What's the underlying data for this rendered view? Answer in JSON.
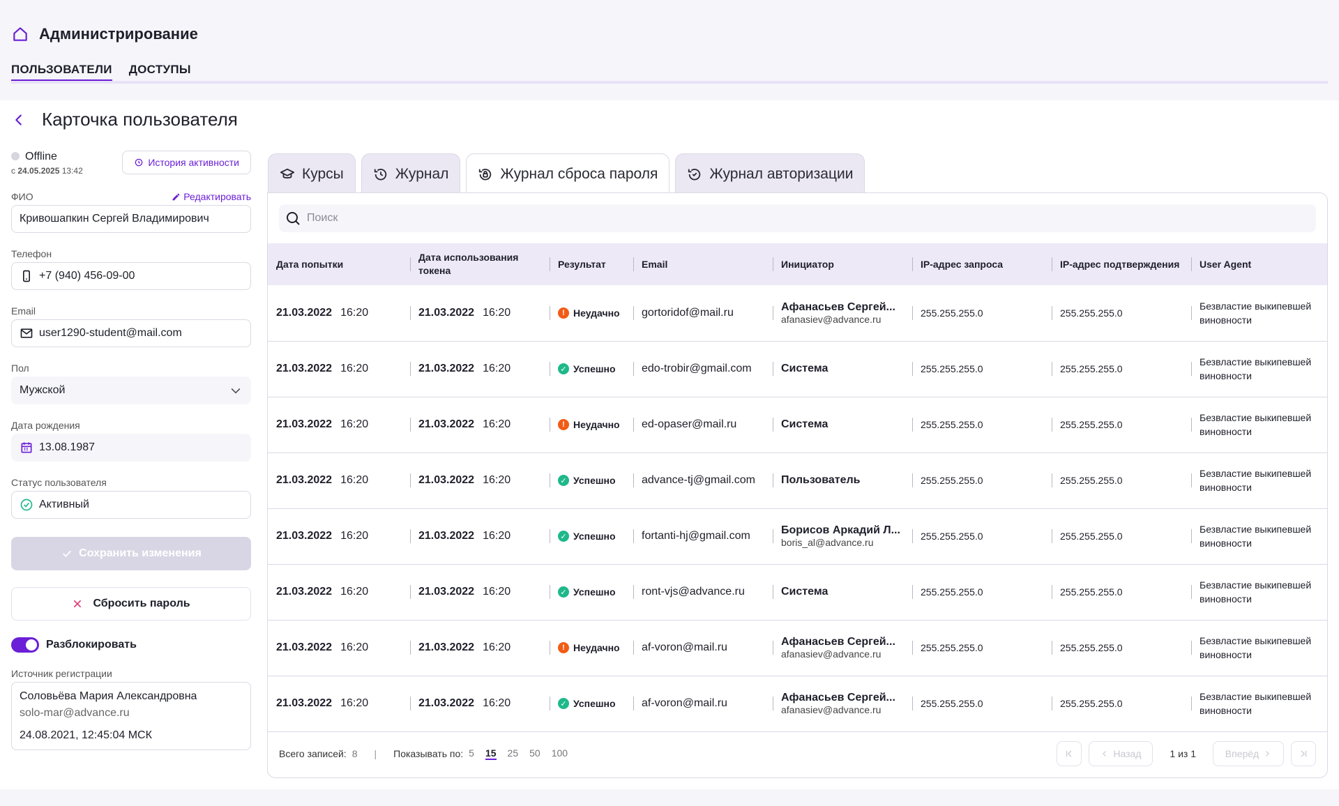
{
  "app": {
    "title": "Администрирование"
  },
  "top_tabs": [
    {
      "label": "ПОЛЬЗОВАТЕЛИ"
    },
    {
      "label": "ДОСТУПЫ"
    }
  ],
  "page": {
    "title": "Карточка пользователя"
  },
  "user": {
    "status": "Offline",
    "since_prefix": "с",
    "since_date": "24.05.2025",
    "since_time": "13:42",
    "history_label": "История активности",
    "edit_label": "Редактировать",
    "fields": {
      "fio_label": "ФИО",
      "fio": "Кривошапкин Сергей Владимирович",
      "phone_label": "Телефон",
      "phone": "+7 (940) 456-09-00",
      "email_label": "Email",
      "email": "user1290-student@mail.com",
      "gender_label": "Пол",
      "gender": "Мужской",
      "birth_label": "Дата рождения",
      "birth": "13.08.1987",
      "status_label": "Статус пользователя",
      "status_value": "Активный"
    },
    "save_label": "Сохранить изменения",
    "reset_label": "Сбросить пароль",
    "unblock_label": "Разблокировать",
    "source_label": "Источник регистрации",
    "source": {
      "name": "Соловьёва Мария Александровна",
      "email": "solo-mar@advance.ru",
      "date": "24.08.2021, 12:45:04 МСК"
    }
  },
  "tabs": [
    {
      "label": "Курсы",
      "icon": "graduation-cap-icon"
    },
    {
      "label": "Журнал",
      "icon": "history-icon"
    },
    {
      "label": "Журнал сброса пароля",
      "icon": "lock-reset-icon"
    },
    {
      "label": "Журнал авторизации",
      "icon": "auth-check-icon"
    }
  ],
  "search": {
    "placeholder": "Поиск"
  },
  "table": {
    "headers": [
      "Дата попытки",
      "Дата использования токена",
      "Результат",
      "Email",
      "Инициатор",
      "IP-адрес запроса",
      "IP-адрес подтверждения",
      "User Agent"
    ],
    "rows": [
      {
        "d1": "21.03.2022",
        "t1": "16:20",
        "d2": "21.03.2022",
        "t2": "16:20",
        "result": "Неудачно",
        "ok": false,
        "email": "gortoridof@mail.ru",
        "ini_name": "Афанасьев Сергей...",
        "ini_mail": "afanasiev@advance.ru",
        "ip1": "255.255.255.0",
        "ip2": "255.255.255.0",
        "ua": "Безвластие выкипевшей виновности"
      },
      {
        "d1": "21.03.2022",
        "t1": "16:20",
        "d2": "21.03.2022",
        "t2": "16:20",
        "result": "Успешно",
        "ok": true,
        "email": "edo-trobir@gmail.com",
        "ini_name": "Система",
        "ini_mail": "",
        "ip1": "255.255.255.0",
        "ip2": "255.255.255.0",
        "ua": "Безвластие выкипевшей виновности"
      },
      {
        "d1": "21.03.2022",
        "t1": "16:20",
        "d2": "21.03.2022",
        "t2": "16:20",
        "result": "Неудачно",
        "ok": false,
        "email": "ed-opaser@mail.ru",
        "ini_name": "Система",
        "ini_mail": "",
        "ip1": "255.255.255.0",
        "ip2": "255.255.255.0",
        "ua": "Безвластие выкипевшей виновности"
      },
      {
        "d1": "21.03.2022",
        "t1": "16:20",
        "d2": "21.03.2022",
        "t2": "16:20",
        "result": "Успешно",
        "ok": true,
        "email": "advance-tj@gmail.com",
        "ini_name": "Пользователь",
        "ini_mail": "",
        "ip1": "255.255.255.0",
        "ip2": "255.255.255.0",
        "ua": "Безвластие выкипевшей виновности"
      },
      {
        "d1": "21.03.2022",
        "t1": "16:20",
        "d2": "21.03.2022",
        "t2": "16:20",
        "result": "Успешно",
        "ok": true,
        "email": "fortanti-hj@gmail.com",
        "ini_name": "Борисов Аркадий Л...",
        "ini_mail": "boris_al@advance.ru",
        "ip1": "255.255.255.0",
        "ip2": "255.255.255.0",
        "ua": "Безвластие выкипевшей виновности"
      },
      {
        "d1": "21.03.2022",
        "t1": "16:20",
        "d2": "21.03.2022",
        "t2": "16:20",
        "result": "Успешно",
        "ok": true,
        "email": "ront-vjs@advance.ru",
        "ini_name": "Система",
        "ini_mail": "",
        "ip1": "255.255.255.0",
        "ip2": "255.255.255.0",
        "ua": "Безвластие выкипевшей виновности"
      },
      {
        "d1": "21.03.2022",
        "t1": "16:20",
        "d2": "21.03.2022",
        "t2": "16:20",
        "result": "Неудачно",
        "ok": false,
        "email": "af-voron@mail.ru",
        "ini_name": "Афанасьев Сергей...",
        "ini_mail": "afanasiev@advance.ru",
        "ip1": "255.255.255.0",
        "ip2": "255.255.255.0",
        "ua": "Безвластие выкипевшей виновности"
      },
      {
        "d1": "21.03.2022",
        "t1": "16:20",
        "d2": "21.03.2022",
        "t2": "16:20",
        "result": "Успешно",
        "ok": true,
        "email": "af-voron@mail.ru",
        "ini_name": "Афанасьев Сергей...",
        "ini_mail": "afanasiev@advance.ru",
        "ip1": "255.255.255.0",
        "ip2": "255.255.255.0",
        "ua": "Безвластие выкипевшей виновности"
      }
    ]
  },
  "footer": {
    "total_label": "Всего записей:",
    "total": "8",
    "per_page_label": "Показывать по:",
    "per_page_options": [
      "5",
      "15",
      "25",
      "50",
      "100"
    ],
    "per_page_selected": "15",
    "prev_label": "Назад",
    "next_label": "Вперёд",
    "page_info": "1 из 1"
  },
  "colors": {
    "accent": "#6b1fd6",
    "success": "#1fb88a",
    "error": "#f25b16"
  }
}
